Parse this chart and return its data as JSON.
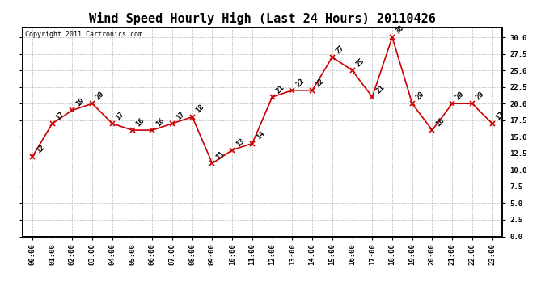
{
  "title": "Wind Speed Hourly High (Last 24 Hours) 20110426",
  "copyright": "Copyright 2011 Cartronics.com",
  "hours": [
    "00:00",
    "01:00",
    "02:00",
    "03:00",
    "04:00",
    "05:00",
    "06:00",
    "07:00",
    "08:00",
    "09:00",
    "10:00",
    "11:00",
    "12:00",
    "13:00",
    "14:00",
    "15:00",
    "16:00",
    "17:00",
    "18:00",
    "19:00",
    "20:00",
    "21:00",
    "22:00",
    "23:00"
  ],
  "values": [
    12,
    17,
    19,
    20,
    17,
    16,
    16,
    17,
    18,
    11,
    13,
    14,
    21,
    22,
    22,
    27,
    25,
    21,
    30,
    20,
    16,
    20,
    20,
    17
  ],
  "line_color": "#cc0000",
  "marker_color": "#cc0000",
  "bg_color": "#ffffff",
  "grid_color": "#bbbbbb",
  "ylim_min": 0.0,
  "ylim_max": 30.0,
  "ytick_step": 2.5,
  "title_fontsize": 11,
  "label_fontsize": 6.5,
  "annot_fontsize": 6.5,
  "copyright_fontsize": 6
}
